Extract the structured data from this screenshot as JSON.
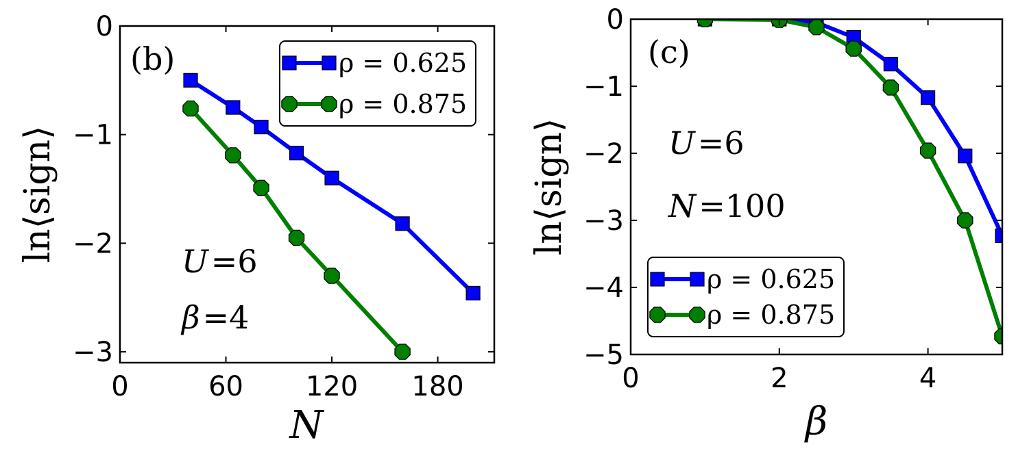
{
  "chart_data": [
    {
      "type": "line",
      "panel_label": "(b)",
      "xlabel": "N",
      "ylabel": "ln⟨sign⟩",
      "xlim": [
        0,
        212
      ],
      "ylim": [
        -3.1,
        0
      ],
      "xticks": [
        0,
        60,
        120,
        180
      ],
      "yticks": [
        0,
        -1,
        -2,
        -3
      ],
      "xtick_labels": [
        "0",
        "60",
        "120",
        "180"
      ],
      "ytick_labels": [
        "0",
        "−1",
        "−2",
        "−3"
      ],
      "annotations": [
        "U = 6",
        "β = 4"
      ],
      "legend_position": "top-right",
      "series": [
        {
          "name": "ρ = 0.625",
          "color": "#0000ff",
          "marker": "square",
          "x": [
            40,
            64,
            80,
            100,
            120,
            160,
            200
          ],
          "y": [
            -0.5,
            -0.75,
            -0.93,
            -1.17,
            -1.4,
            -1.82,
            -2.46
          ]
        },
        {
          "name": "ρ = 0.875",
          "color": "#007f00",
          "marker": "octagon",
          "x": [
            40,
            64,
            80,
            100,
            120,
            160
          ],
          "y": [
            -0.76,
            -1.19,
            -1.49,
            -1.95,
            -2.3,
            -3.0
          ]
        }
      ]
    },
    {
      "type": "line",
      "panel_label": "(c)",
      "xlabel": "β",
      "ylabel": "ln⟨sign⟩",
      "xlim": [
        0,
        5
      ],
      "ylim": [
        -5,
        0
      ],
      "xticks": [
        0,
        2,
        4
      ],
      "yticks": [
        0,
        -1,
        -2,
        -3,
        -4,
        -5
      ],
      "xtick_labels": [
        "0",
        "2",
        "4"
      ],
      "ytick_labels": [
        "0",
        "−1",
        "−2",
        "−3",
        "−4",
        "−5"
      ],
      "annotations": [
        "U = 6",
        "N = 100"
      ],
      "legend_position": "bottom-left",
      "series": [
        {
          "name": "ρ = 0.625",
          "color": "#0000ff",
          "marker": "square",
          "x": [
            1,
            2,
            2.5,
            3,
            3.5,
            4,
            4.5,
            5
          ],
          "y": [
            0.0,
            0.0,
            -0.05,
            -0.27,
            -0.67,
            -1.17,
            -2.04,
            -3.23
          ]
        },
        {
          "name": "ρ = 0.875",
          "color": "#007f00",
          "marker": "octagon",
          "x": [
            1,
            2,
            2.5,
            3,
            3.5,
            4,
            4.5,
            5
          ],
          "y": [
            0.0,
            -0.01,
            -0.12,
            -0.44,
            -1.02,
            -1.96,
            -3.0,
            -4.73
          ]
        }
      ]
    }
  ]
}
